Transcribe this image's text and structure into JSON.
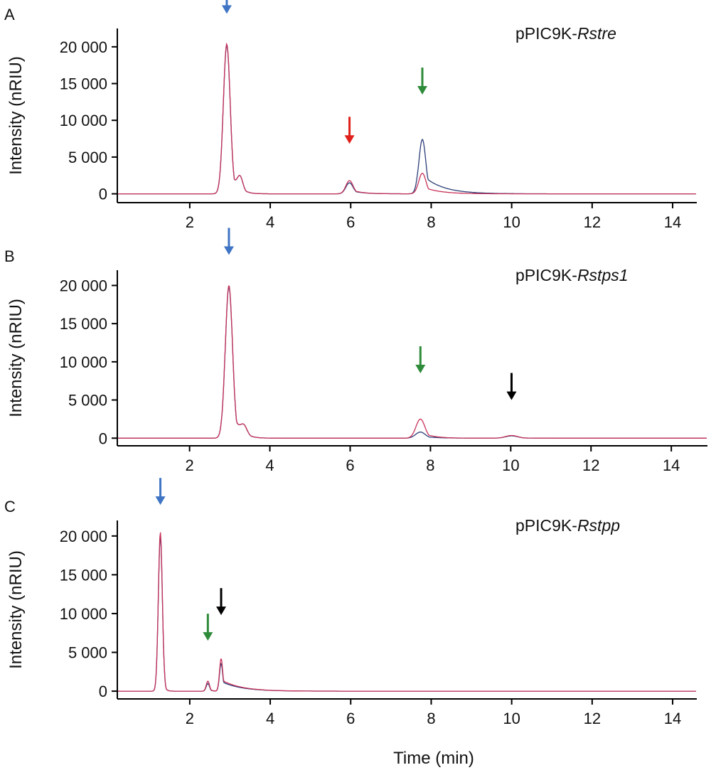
{
  "figure": {
    "xlabel": "Time (min)",
    "colors": {
      "trace_a": "#2c3e78",
      "trace_b": "#c8325a",
      "arrow_blue": "#3f74c4",
      "arrow_red": "#e0201b",
      "arrow_green": "#2e8b3a",
      "arrow_black": "#000000",
      "axis": "#000000"
    }
  },
  "chart_data": [
    {
      "type": "line",
      "panel": "A",
      "sample_prefix": "pPIC9K-",
      "sample_italic": "Rstre",
      "ylabel": "Intensity (nRIU)",
      "xlim": [
        0.2,
        14.6
      ],
      "ylim": [
        -1200,
        22500
      ],
      "x_ticks": [
        2,
        4,
        6,
        8,
        10,
        12,
        14
      ],
      "y_ticks": [
        0,
        5000,
        10000,
        15000,
        20000
      ],
      "y_tick_labels": [
        "0",
        "5 000",
        "10 000",
        "15 000",
        "20 000"
      ],
      "series": [
        {
          "color_key": "trace_a",
          "peaks": [
            {
              "rt": 2.92,
              "height": 20200,
              "sigma": 0.085,
              "tail": 0.06
            },
            {
              "rt": 3.25,
              "height": 1900,
              "sigma": 0.07,
              "tail": 0.05
            },
            {
              "rt": 5.97,
              "height": 1500,
              "sigma": 0.09,
              "tail": 0.12
            },
            {
              "rt": 7.78,
              "height": 7400,
              "sigma": 0.085,
              "tail": 0.22
            }
          ]
        },
        {
          "color_key": "trace_b",
          "peaks": [
            {
              "rt": 2.92,
              "height": 20400,
              "sigma": 0.085,
              "tail": 0.06
            },
            {
              "rt": 3.25,
              "height": 1900,
              "sigma": 0.07,
              "tail": 0.05
            },
            {
              "rt": 5.97,
              "height": 1800,
              "sigma": 0.09,
              "tail": 0.12
            },
            {
              "rt": 7.78,
              "height": 2800,
              "sigma": 0.09,
              "tail": 0.18
            }
          ]
        }
      ],
      "arrows": [
        {
          "x": 2.92,
          "y": 24500,
          "color_key": "arrow_blue"
        },
        {
          "x": 5.97,
          "y": 6800,
          "color_key": "arrow_red"
        },
        {
          "x": 7.78,
          "y": 13500,
          "color_key": "arrow_green"
        }
      ]
    },
    {
      "type": "line",
      "panel": "B",
      "sample_prefix": "pPIC9K-",
      "sample_italic": "Rstps1",
      "ylabel": "Intensity (nRIU)",
      "xlim": [
        0.2,
        14.9
      ],
      "ylim": [
        -1000,
        22000
      ],
      "x_ticks": [
        2,
        4,
        6,
        8,
        10,
        12,
        14
      ],
      "y_ticks": [
        0,
        5000,
        10000,
        15000,
        20000
      ],
      "y_tick_labels": [
        "0",
        "5 000",
        "10 000",
        "15 000",
        "20 000"
      ],
      "series": [
        {
          "color_key": "trace_a",
          "peaks": [
            {
              "rt": 2.98,
              "height": 19800,
              "sigma": 0.09,
              "tail": 0.07
            },
            {
              "rt": 3.35,
              "height": 1200,
              "sigma": 0.08,
              "tail": 0.05
            },
            {
              "rt": 7.75,
              "height": 800,
              "sigma": 0.12,
              "tail": 0.15
            },
            {
              "rt": 10.02,
              "height": 300,
              "sigma": 0.15,
              "tail": 0.1
            }
          ]
        },
        {
          "color_key": "trace_b",
          "peaks": [
            {
              "rt": 2.98,
              "height": 20000,
              "sigma": 0.09,
              "tail": 0.07
            },
            {
              "rt": 3.35,
              "height": 1200,
              "sigma": 0.08,
              "tail": 0.05
            },
            {
              "rt": 7.75,
              "height": 2500,
              "sigma": 0.11,
              "tail": 0.12
            },
            {
              "rt": 10.02,
              "height": 350,
              "sigma": 0.15,
              "tail": 0.1
            }
          ]
        }
      ],
      "arrows": [
        {
          "x": 2.98,
          "y": 24000,
          "color_key": "arrow_blue"
        },
        {
          "x": 7.75,
          "y": 8500,
          "color_key": "arrow_green"
        },
        {
          "x": 10.02,
          "y": 5000,
          "color_key": "arrow_black"
        }
      ]
    },
    {
      "type": "line",
      "panel": "C",
      "sample_prefix": "pPIC9K-",
      "sample_italic": "Rstpp",
      "ylabel": "Intensity (nRIU)",
      "xlim": [
        0.2,
        14.6
      ],
      "ylim": [
        -1000,
        22000
      ],
      "x_ticks": [
        2,
        4,
        6,
        8,
        10,
        12,
        14
      ],
      "y_ticks": [
        0,
        5000,
        10000,
        15000,
        20000
      ],
      "y_tick_labels": [
        "0",
        "5 000",
        "10 000",
        "15 000",
        "20 000"
      ],
      "series": [
        {
          "color_key": "trace_a",
          "peaks": [
            {
              "rt": 1.27,
              "height": 20000,
              "sigma": 0.05,
              "tail": 0.02
            },
            {
              "rt": 2.45,
              "height": 1000,
              "sigma": 0.04,
              "tail": 0.03
            },
            {
              "rt": 2.78,
              "height": 3600,
              "sigma": 0.04,
              "tail": 0.22
            }
          ]
        },
        {
          "color_key": "trace_b",
          "peaks": [
            {
              "rt": 1.27,
              "height": 20500,
              "sigma": 0.05,
              "tail": 0.02
            },
            {
              "rt": 2.45,
              "height": 1300,
              "sigma": 0.04,
              "tail": 0.03
            },
            {
              "rt": 2.78,
              "height": 4200,
              "sigma": 0.04,
              "tail": 0.22
            }
          ]
        }
      ],
      "arrows": [
        {
          "x": 1.27,
          "y": 24000,
          "color_key": "arrow_blue"
        },
        {
          "x": 2.45,
          "y": 6500,
          "color_key": "arrow_green"
        },
        {
          "x": 2.78,
          "y": 9800,
          "color_key": "arrow_black"
        }
      ]
    }
  ]
}
